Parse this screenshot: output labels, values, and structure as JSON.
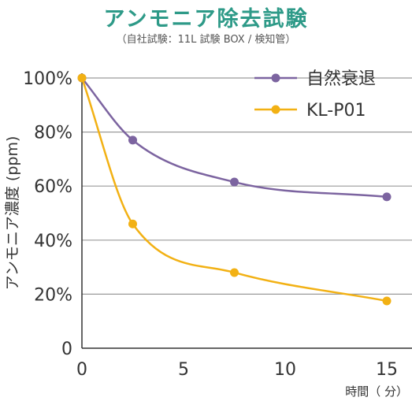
{
  "chart_data": {
    "type": "line",
    "title": "アンモニア除去試験",
    "subtitle": "（自社試験：11L 試験 BOX / 検知管）",
    "xlabel": "時間（ 分）",
    "ylabel": "アンモニア濃度 (ppm)",
    "x_ticks": [
      "0",
      "5",
      "10",
      "15"
    ],
    "y_ticks": [
      "0",
      "20%",
      "40%",
      "60%",
      "80%",
      "100%"
    ],
    "xlim": [
      0,
      15
    ],
    "ylim": [
      0,
      100
    ],
    "grid": "horizontal",
    "legend_position": "top-right",
    "series": [
      {
        "name": "自然衰退",
        "color": "#7c64a0",
        "x": [
          0,
          2.5,
          7.5,
          15
        ],
        "y": [
          100,
          77,
          61.5,
          56
        ]
      },
      {
        "name": "KL-P01",
        "color": "#f2b114",
        "x": [
          0,
          2.5,
          7.5,
          15
        ],
        "y": [
          100,
          46,
          28,
          17.5
        ]
      }
    ]
  },
  "colors": {
    "title": "#2e9a88",
    "grid": "#9a9a9a",
    "axis": "#333333",
    "text": "#333333"
  }
}
